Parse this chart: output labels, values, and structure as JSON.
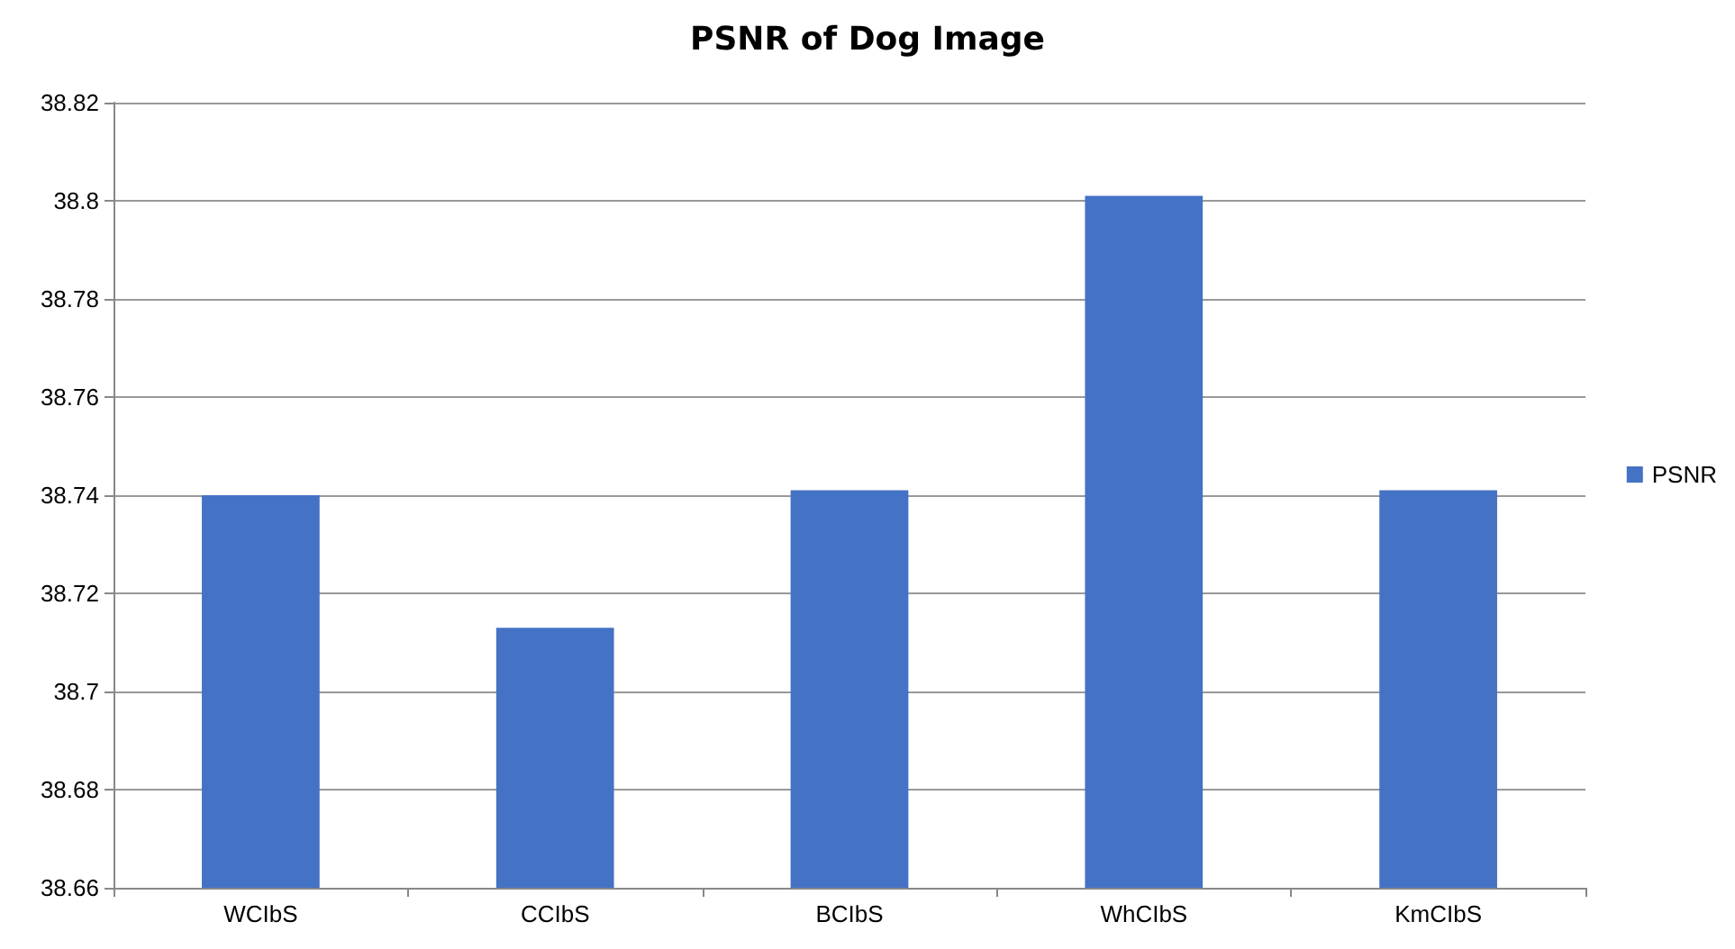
{
  "chart_data": {
    "type": "bar",
    "title": "PSNR of Dog Image",
    "categories": [
      "WCIbS",
      "CCIbS",
      "BCIbS",
      "WhCIbS",
      "KmCIbS"
    ],
    "series": [
      {
        "name": "PSNR",
        "color": "#4472c4",
        "values": [
          38.74,
          38.713,
          38.741,
          38.801,
          38.741
        ]
      }
    ],
    "ylim": [
      38.66,
      38.82
    ],
    "yticks": [
      38.66,
      38.68,
      38.7,
      38.72,
      38.74,
      38.76,
      38.78,
      38.8,
      38.82
    ],
    "grid": "y",
    "legend": "right"
  }
}
